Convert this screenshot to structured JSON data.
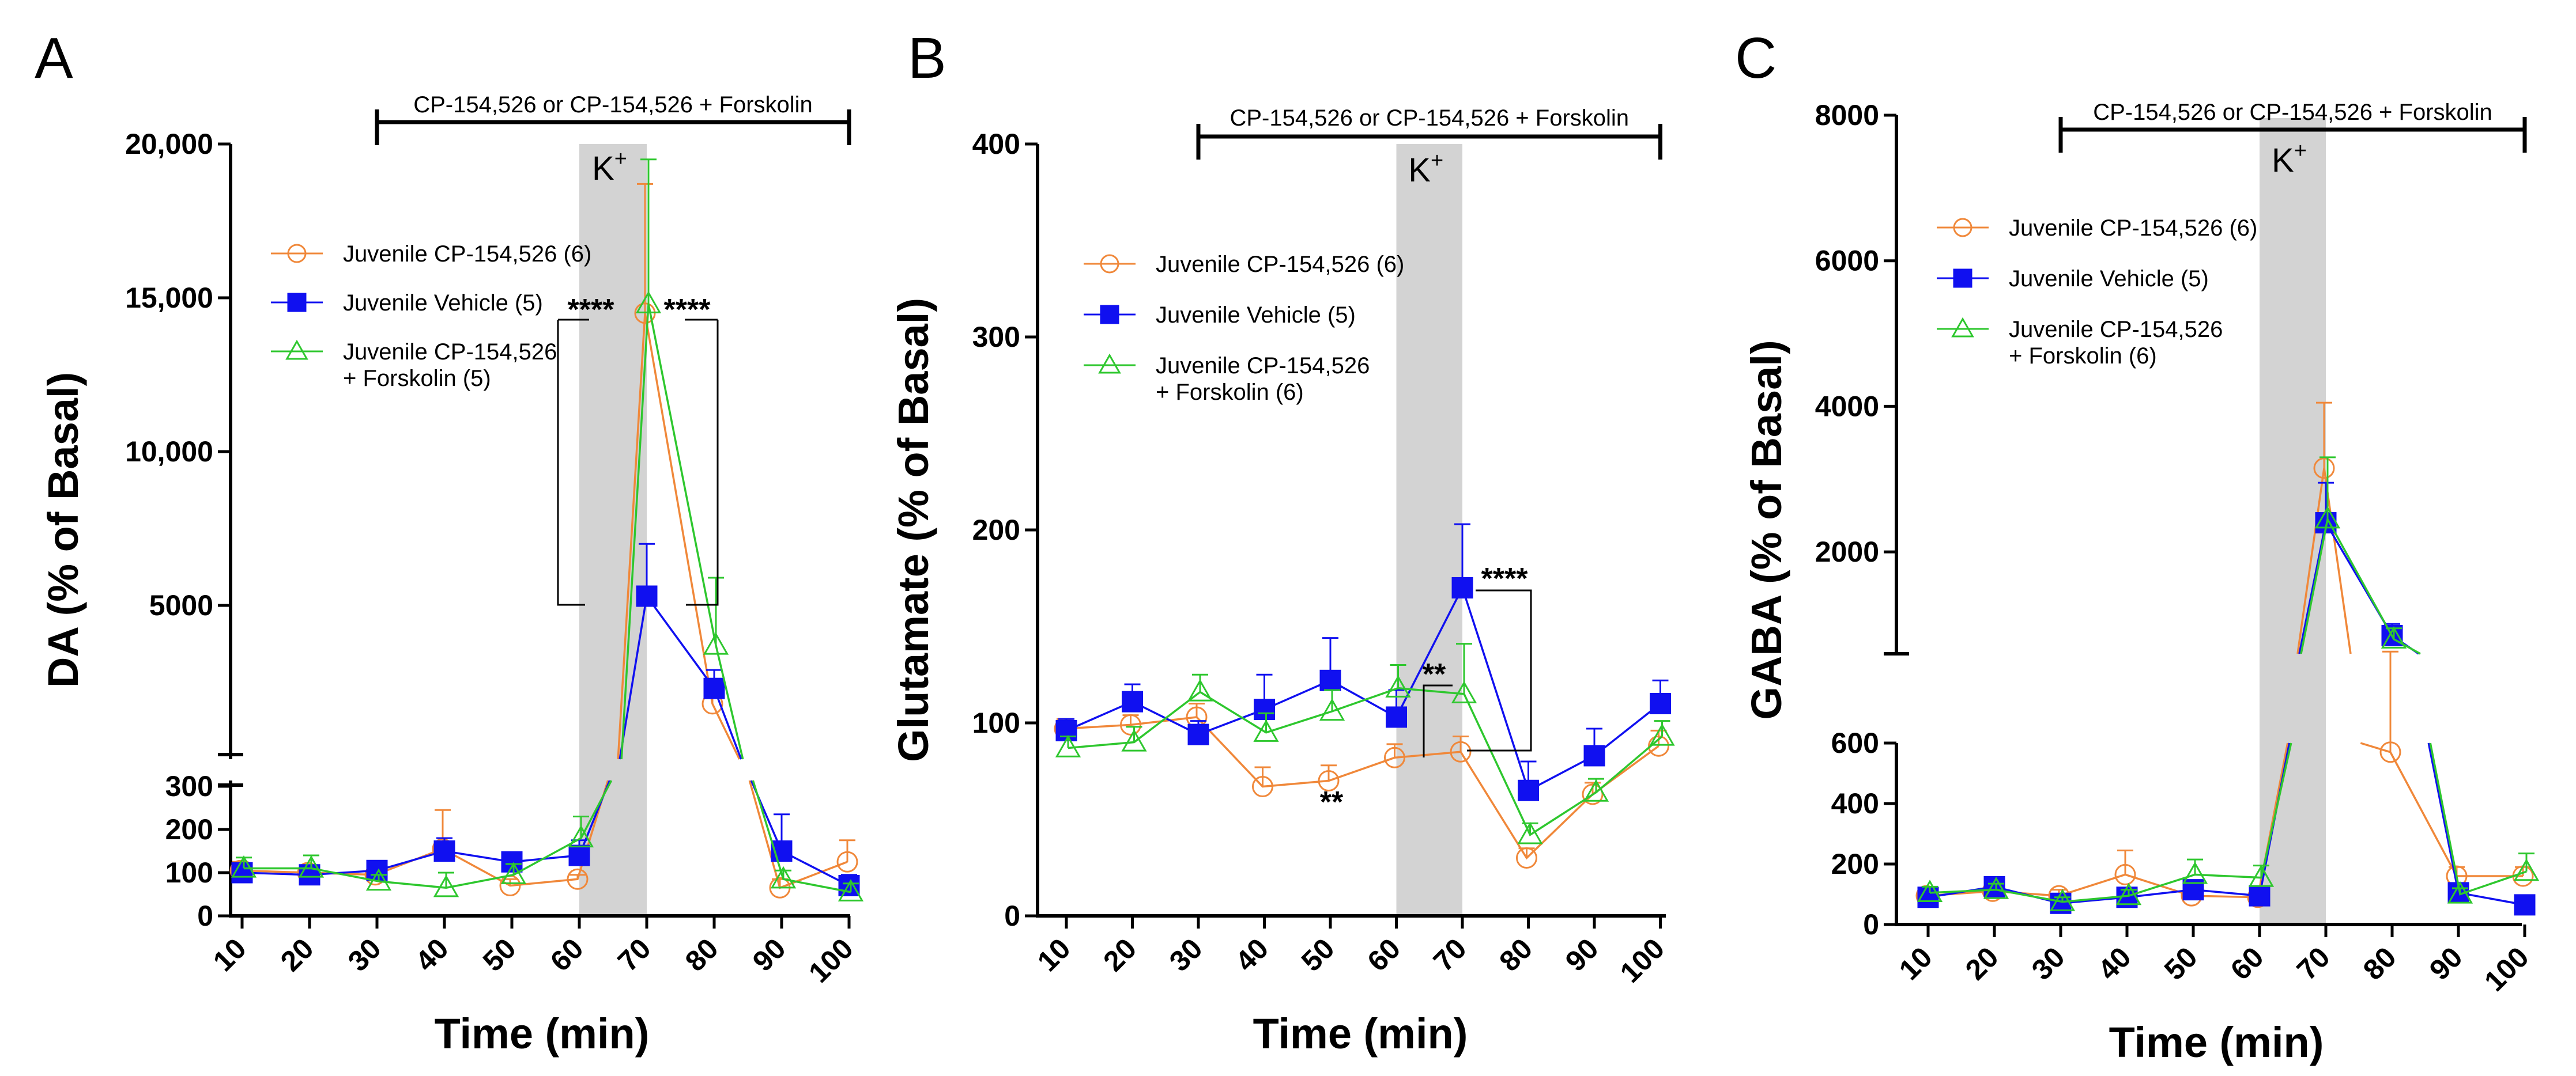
{
  "colors": {
    "juvenile_cp": "#f0883a",
    "juvenile_vehicle": "#1010f0",
    "juvenile_cp_forskolin": "#2ec72e",
    "k_shading": "#d3d3d3"
  },
  "chart_data": [
    {
      "panel": "A",
      "type": "line",
      "xlabel": "Time (min)",
      "ylabel": "DA (% of Basal)",
      "x": [
        10,
        20,
        30,
        40,
        50,
        60,
        70,
        80,
        90,
        100
      ],
      "xtick_labels": [
        "10",
        "20",
        "30",
        "40",
        "50",
        "60",
        "70",
        "80",
        "90",
        "100"
      ],
      "y_axis_break": true,
      "ylim_lower": [
        0,
        300
      ],
      "ylim_upper": [
        0,
        20000
      ],
      "lower_ticks": [
        0,
        100,
        200,
        300
      ],
      "lower_tick_labels": [
        "0",
        "100",
        "200",
        "300"
      ],
      "upper_ticks": [
        5000,
        10000,
        15000,
        20000
      ],
      "upper_tick_labels": [
        "5000",
        "10,000",
        "15,000",
        "20,000"
      ],
      "treatment_label": "CP-154,526 or CP-154,526 + Forskolin",
      "treatment_range": [
        30,
        100
      ],
      "k_label": "K",
      "k_sup": "+",
      "k_window": [
        60,
        70
      ],
      "series": [
        {
          "name": "Juvenile CP-154,526 (6)",
          "color_key": "juvenile_cp",
          "marker": "circle",
          "values": [
            105,
            100,
            95,
            155,
            70,
            85,
            14500,
            1800,
            65,
            125
          ],
          "errors": [
            20,
            15,
            10,
            90,
            15,
            10,
            4200,
            600,
            20,
            50
          ]
        },
        {
          "name": "Juvenile Vehicle (5)",
          "color_key": "juvenile_vehicle",
          "marker": "square",
          "values": [
            100,
            95,
            105,
            150,
            125,
            140,
            5300,
            2300,
            150,
            70
          ],
          "errors": [
            15,
            10,
            15,
            30,
            20,
            35,
            1700,
            600,
            85,
            25
          ]
        },
        {
          "name": "Juvenile CP-154,526",
          "name_line2": "+ Forskolin (5)",
          "color_key": "juvenile_cp_forskolin",
          "marker": "triangle",
          "values": [
            110,
            110,
            80,
            65,
            95,
            180,
            14800,
            3700,
            85,
            55
          ],
          "errors": [
            25,
            30,
            15,
            35,
            25,
            50,
            4700,
            2200,
            20,
            20
          ]
        }
      ],
      "annotations": [
        "****",
        "****"
      ]
    },
    {
      "panel": "B",
      "type": "line",
      "xlabel": "Time (min)",
      "ylabel": "Glutamate (% of Basal)",
      "x": [
        10,
        20,
        30,
        40,
        50,
        60,
        70,
        80,
        90,
        100
      ],
      "xtick_labels": [
        "10",
        "20",
        "30",
        "40",
        "50",
        "60",
        "70",
        "80",
        "90",
        "100"
      ],
      "ylim": [
        0,
        400
      ],
      "ticks": [
        0,
        100,
        200,
        300,
        400
      ],
      "tick_labels": [
        "0",
        "100",
        "200",
        "300",
        "400"
      ],
      "treatment_label": "CP-154,526 or CP-154,526 + Forskolin",
      "treatment_range": [
        30,
        100
      ],
      "k_label": "K",
      "k_sup": "+",
      "k_window": [
        60,
        70
      ],
      "series": [
        {
          "name": "Juvenile CP-154,526 (6)",
          "color_key": "juvenile_cp",
          "marker": "circle",
          "values": [
            97,
            99,
            103,
            67,
            70,
            82,
            85,
            30,
            63,
            88
          ],
          "errors": [
            5,
            5,
            7,
            10,
            8,
            7,
            8,
            5,
            6,
            8
          ]
        },
        {
          "name": "Juvenile Vehicle (5)",
          "color_key": "juvenile_vehicle",
          "marker": "square",
          "values": [
            96,
            111,
            94,
            107,
            122,
            103,
            170,
            65,
            83,
            110
          ],
          "errors": [
            6,
            9,
            7,
            18,
            22,
            14,
            33,
            15,
            14,
            12
          ]
        },
        {
          "name": "Juvenile CP-154,526",
          "name_line2": "+ Forskolin (6)",
          "color_key": "juvenile_cp_forskolin",
          "marker": "triangle",
          "values": [
            87,
            90,
            116,
            95,
            106,
            118,
            115,
            42,
            64,
            93
          ],
          "errors": [
            6,
            8,
            9,
            10,
            11,
            12,
            26,
            6,
            7,
            8
          ]
        }
      ],
      "annotations": [
        "**",
        "**",
        "****"
      ]
    },
    {
      "panel": "C",
      "type": "line",
      "xlabel": "Time (min)",
      "ylabel": "GABA (% of Basal)",
      "x": [
        10,
        20,
        30,
        40,
        50,
        60,
        70,
        80,
        90,
        100
      ],
      "xtick_labels": [
        "10",
        "20",
        "30",
        "40",
        "50",
        "60",
        "70",
        "80",
        "90",
        "100"
      ],
      "y_axis_break": true,
      "ylim_lower": [
        0,
        600
      ],
      "ylim_upper": [
        600,
        8000
      ],
      "lower_ticks": [
        0,
        200,
        400,
        600
      ],
      "lower_tick_labels": [
        "0",
        "200",
        "400",
        "600"
      ],
      "upper_ticks": [
        2000,
        4000,
        6000,
        8000
      ],
      "upper_tick_labels": [
        "2000",
        "4000",
        "6000",
        "8000"
      ],
      "treatment_label": "CP-154,526 or CP-154,526 + Forskolin",
      "treatment_range": [
        30,
        100
      ],
      "k_label": "K",
      "k_sup": "+",
      "k_window": [
        60,
        70
      ],
      "series": [
        {
          "name": "Juvenile CP-154,526 (6)",
          "color_key": "juvenile_cp",
          "marker": "circle",
          "values": [
            95,
            110,
            95,
            165,
            95,
            90,
            3150,
            570,
            160,
            160
          ],
          "errors": [
            20,
            20,
            20,
            80,
            20,
            20,
            900,
            60,
            30,
            30
          ]
        },
        {
          "name": "Juvenile Vehicle (5)",
          "color_key": "juvenile_vehicle",
          "marker": "square",
          "values": [
            90,
            125,
            70,
            90,
            115,
            95,
            2400,
            850,
            105,
            65
          ],
          "errors": [
            15,
            20,
            15,
            20,
            30,
            25,
            550,
            160,
            20,
            15
          ]
        },
        {
          "name": "Juvenile CP-154,526",
          "name_line2": "+ Forskolin (6)",
          "color_key": "juvenile_cp_forskolin",
          "marker": "triangle",
          "values": [
            105,
            115,
            75,
            95,
            165,
            155,
            2450,
            800,
            100,
            175
          ],
          "errors": [
            20,
            20,
            15,
            20,
            50,
            40,
            850,
            150,
            20,
            60
          ]
        }
      ],
      "annotations": []
    }
  ]
}
